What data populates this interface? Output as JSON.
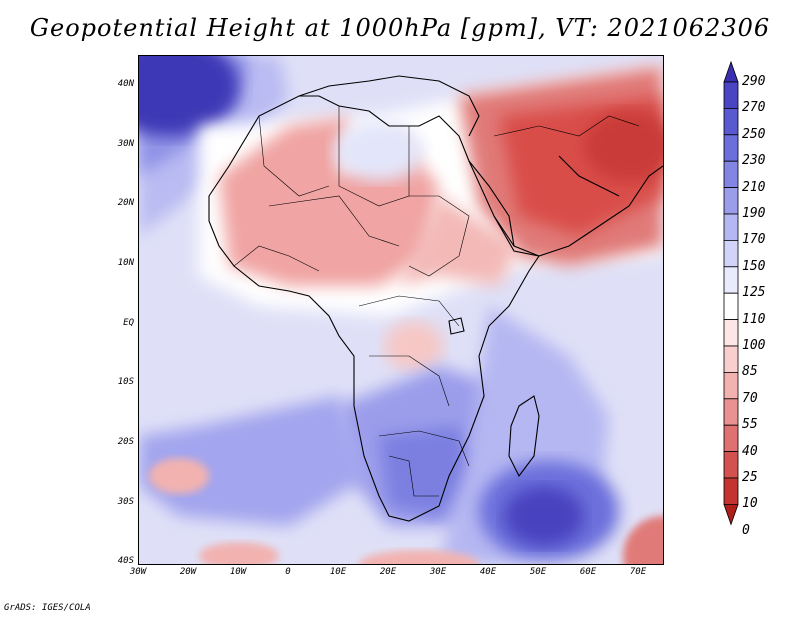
{
  "title": "Geopotential Height at 1000hPa [gpm], VT: 2021062306",
  "footer": "GrADS: IGES/COLA",
  "lat_labels": [
    "40N",
    "30N",
    "20N",
    "10N",
    "EQ",
    "10S",
    "20S",
    "30S",
    "40S"
  ],
  "lon_labels": [
    "30W",
    "20W",
    "10W",
    "0",
    "10E",
    "20E",
    "30E",
    "40E",
    "50E",
    "60E",
    "70E"
  ],
  "colorbar": {
    "levels": [
      "290",
      "270",
      "250",
      "230",
      "210",
      "190",
      "170",
      "150",
      "125",
      "110",
      "100",
      "85",
      "70",
      "55",
      "40",
      "25",
      "10",
      "0"
    ],
    "colors": [
      "#3a2fb0",
      "#4a45c2",
      "#5a5ad0",
      "#6c6fdb",
      "#8385e4",
      "#9b9deb",
      "#b5b7f2",
      "#d1d3f8",
      "#e9eafc",
      "#ffffff",
      "#fde7e6",
      "#f9cfcd",
      "#f2b2b0",
      "#ea9291",
      "#df7170",
      "#d3524f",
      "#c33431",
      "#b01e1a"
    ]
  },
  "map_colors": {
    "ocean_south": "#dfe0f7",
    "north_atlantic": "#8f92e6",
    "azores": "#3e37b6",
    "sahara": "#f0a4a3",
    "arabia": "#d94d4a",
    "iran": "#c93b37",
    "libya": "#e3e6fa",
    "south_africa": "#7c7fe0",
    "indian_high": "#4943c0",
    "white_band": "#ffffff",
    "warm_spot": "#f6c7c5"
  }
}
